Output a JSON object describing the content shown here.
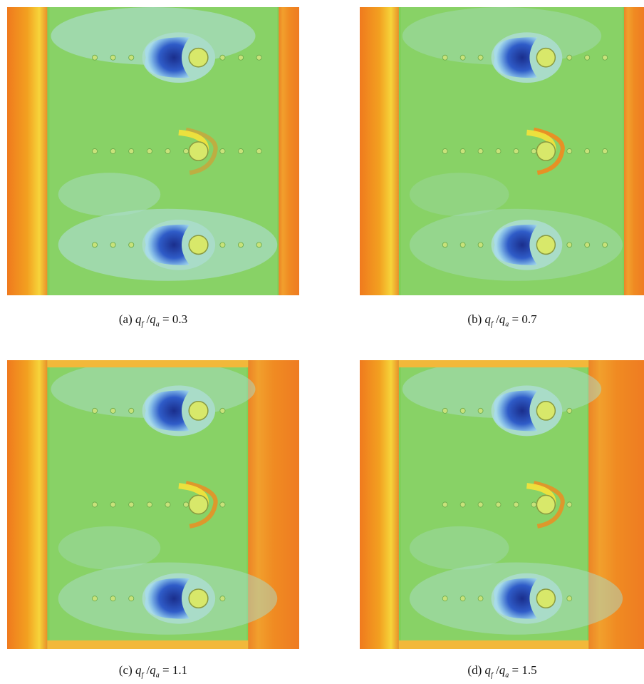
{
  "captions": [
    {
      "label": "(a)",
      "numerator": "q",
      "numerator_subscript": "f",
      "separator": "/",
      "denominator": "q",
      "denominator_subscript": "a",
      "relation": "=",
      "value": 0.3
    },
    {
      "label": "(b)",
      "numerator": "q",
      "numerator_subscript": "f",
      "separator": "/",
      "denominator": "q",
      "denominator_subscript": "a",
      "relation": "=",
      "value": 0.7
    },
    {
      "label": "(c)",
      "numerator": "q",
      "numerator_subscript": "f",
      "separator": "/",
      "denominator": "q",
      "denominator_subscript": "a",
      "relation": "=",
      "value": 1.1
    },
    {
      "label": "(d)",
      "numerator": "q",
      "numerator_subscript": "f",
      "separator": "/",
      "denominator": "q",
      "denominator_subscript": "a",
      "relation": "=",
      "value": 1.5
    }
  ]
}
